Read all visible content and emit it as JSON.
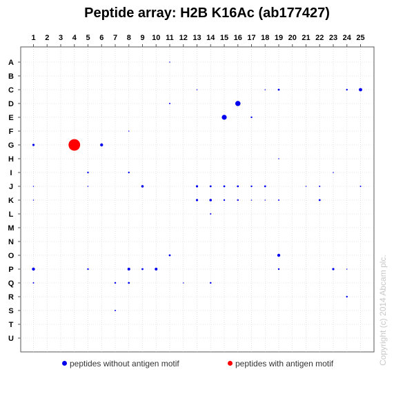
{
  "chart_data": {
    "type": "scatter",
    "title": "Peptide array:  H2B K16Ac (ab177427)",
    "columns": [
      "1",
      "2",
      "3",
      "4",
      "5",
      "6",
      "7",
      "8",
      "9",
      "10",
      "11",
      "12",
      "13",
      "14",
      "15",
      "16",
      "17",
      "18",
      "19",
      "20",
      "21",
      "22",
      "23",
      "24",
      "25"
    ],
    "rows": [
      "A",
      "B",
      "C",
      "D",
      "E",
      "F",
      "G",
      "H",
      "I",
      "J",
      "K",
      "L",
      "M",
      "N",
      "O",
      "P",
      "Q",
      "R",
      "S",
      "T",
      "U"
    ],
    "series": [
      {
        "name": "peptides without antigen motif",
        "color": "#0000ee",
        "points": [
          {
            "row": "A",
            "col": 11,
            "v": 0.1
          },
          {
            "row": "C",
            "col": 13,
            "v": 0.15
          },
          {
            "row": "C",
            "col": 18,
            "v": 0.15
          },
          {
            "row": "C",
            "col": 19,
            "v": 0.35
          },
          {
            "row": "C",
            "col": 24,
            "v": 0.3
          },
          {
            "row": "C",
            "col": 25,
            "v": 0.6
          },
          {
            "row": "D",
            "col": 11,
            "v": 0.25
          },
          {
            "row": "D",
            "col": 16,
            "v": 0.95
          },
          {
            "row": "E",
            "col": 15,
            "v": 0.9
          },
          {
            "row": "E",
            "col": 17,
            "v": 0.3
          },
          {
            "row": "F",
            "col": 8,
            "v": 0.12
          },
          {
            "row": "G",
            "col": 1,
            "v": 0.4
          },
          {
            "row": "G",
            "col": 6,
            "v": 0.55
          },
          {
            "row": "H",
            "col": 19,
            "v": 0.12
          },
          {
            "row": "I",
            "col": 5,
            "v": 0.3
          },
          {
            "row": "I",
            "col": 8,
            "v": 0.3
          },
          {
            "row": "I",
            "col": 23,
            "v": 0.12
          },
          {
            "row": "J",
            "col": 1,
            "v": 0.12
          },
          {
            "row": "J",
            "col": 5,
            "v": 0.15
          },
          {
            "row": "J",
            "col": 9,
            "v": 0.45
          },
          {
            "row": "J",
            "col": 13,
            "v": 0.4
          },
          {
            "row": "J",
            "col": 14,
            "v": 0.35
          },
          {
            "row": "J",
            "col": 15,
            "v": 0.35
          },
          {
            "row": "J",
            "col": 16,
            "v": 0.35
          },
          {
            "row": "J",
            "col": 17,
            "v": 0.3
          },
          {
            "row": "J",
            "col": 18,
            "v": 0.35
          },
          {
            "row": "J",
            "col": 21,
            "v": 0.12
          },
          {
            "row": "J",
            "col": 22,
            "v": 0.25
          },
          {
            "row": "J",
            "col": 25,
            "v": 0.25
          },
          {
            "row": "K",
            "col": 1,
            "v": 0.12
          },
          {
            "row": "K",
            "col": 13,
            "v": 0.4
          },
          {
            "row": "K",
            "col": 14,
            "v": 0.45
          },
          {
            "row": "K",
            "col": 15,
            "v": 0.3
          },
          {
            "row": "K",
            "col": 16,
            "v": 0.3
          },
          {
            "row": "K",
            "col": 17,
            "v": 0.15
          },
          {
            "row": "K",
            "col": 18,
            "v": 0.15
          },
          {
            "row": "K",
            "col": 19,
            "v": 0.25
          },
          {
            "row": "K",
            "col": 22,
            "v": 0.35
          },
          {
            "row": "L",
            "col": 14,
            "v": 0.25
          },
          {
            "row": "O",
            "col": 11,
            "v": 0.35
          },
          {
            "row": "O",
            "col": 19,
            "v": 0.55
          },
          {
            "row": "P",
            "col": 1,
            "v": 0.55
          },
          {
            "row": "P",
            "col": 5,
            "v": 0.3
          },
          {
            "row": "P",
            "col": 8,
            "v": 0.5
          },
          {
            "row": "P",
            "col": 9,
            "v": 0.35
          },
          {
            "row": "P",
            "col": 10,
            "v": 0.5
          },
          {
            "row": "P",
            "col": 19,
            "v": 0.3
          },
          {
            "row": "P",
            "col": 23,
            "v": 0.4
          },
          {
            "row": "P",
            "col": 24,
            "v": 0.12
          },
          {
            "row": "Q",
            "col": 1,
            "v": 0.25
          },
          {
            "row": "Q",
            "col": 7,
            "v": 0.3
          },
          {
            "row": "Q",
            "col": 8,
            "v": 0.35
          },
          {
            "row": "Q",
            "col": 12,
            "v": 0.12
          },
          {
            "row": "Q",
            "col": 14,
            "v": 0.3
          },
          {
            "row": "R",
            "col": 24,
            "v": 0.3
          },
          {
            "row": "S",
            "col": 7,
            "v": 0.25
          }
        ]
      },
      {
        "name": "peptides with antigen motif",
        "color": "#ff0000",
        "points": [
          {
            "row": "G",
            "col": 4,
            "v": 2.1
          }
        ]
      }
    ],
    "grid": true,
    "legend_position": "bottom"
  },
  "watermark": "Copyright (c) 2014 Abcam plc."
}
